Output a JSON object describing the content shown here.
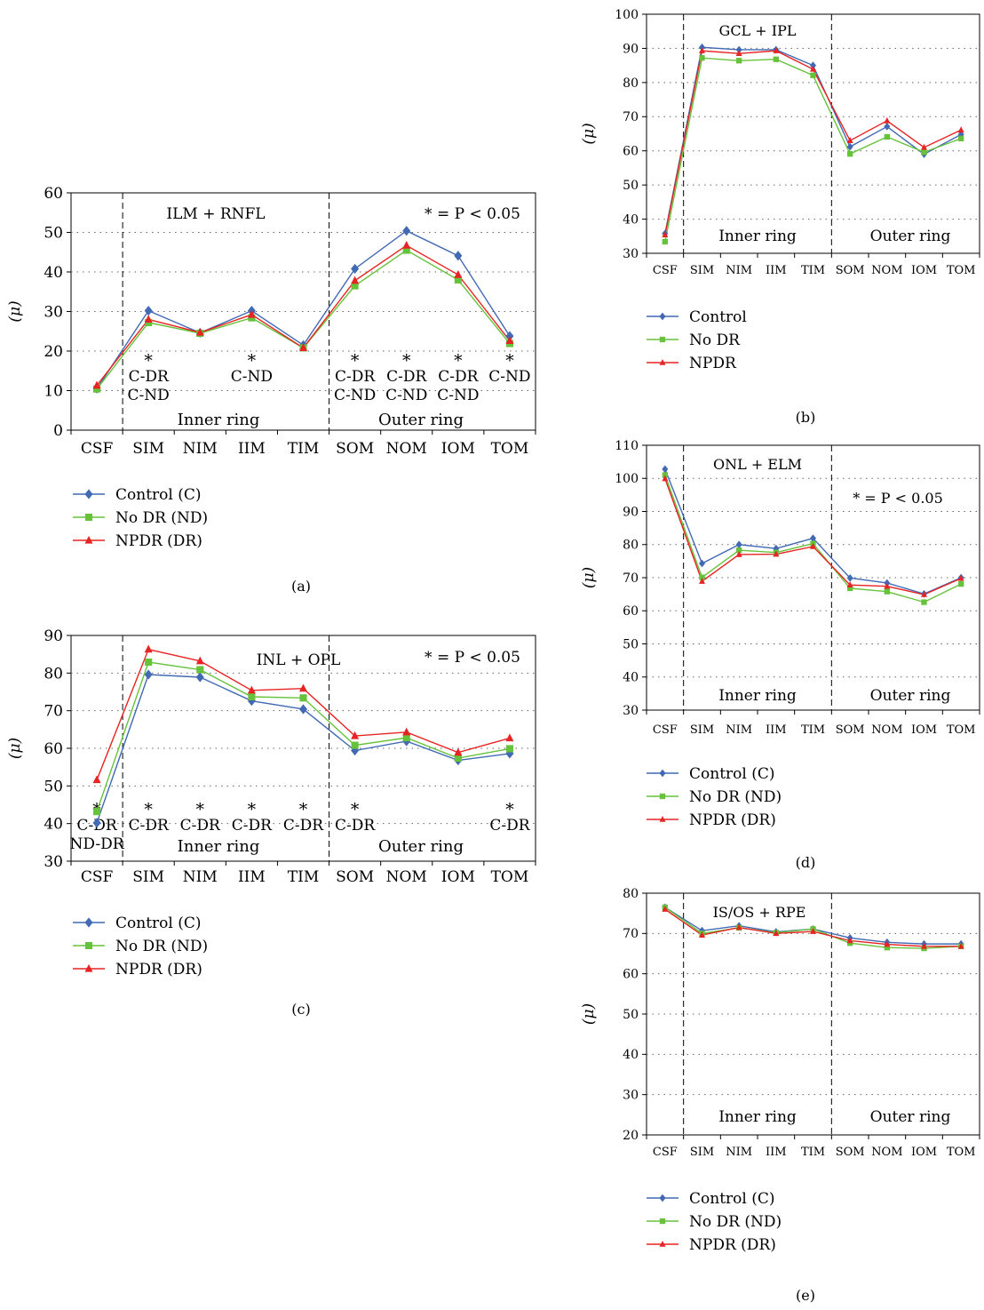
{
  "colors": {
    "Control": "#4169B4",
    "No DR": "#66C23B",
    "NPDR": "#E82323"
  },
  "chart_data": [
    {
      "id": "a",
      "type": "line",
      "caption": "(a)",
      "title": "ILM + RNFL",
      "ylabel": "(μ)",
      "ylim": [
        0,
        60
      ],
      "yticks": [
        "0",
        "10",
        "20",
        "30",
        "40",
        "50",
        "60"
      ],
      "categories": [
        "CSF",
        "SIM",
        "NIM",
        "IIM",
        "TIM",
        "SOM",
        "NOM",
        "IOM",
        "TOM"
      ],
      "significance_note": "* = P < 0.05",
      "region_labels": [
        "Inner ring",
        "Outer ring"
      ],
      "annotations": [
        {
          "category": "SIM",
          "lines": [
            "*",
            "C-DR",
            "C-ND"
          ]
        },
        {
          "category": "IIM",
          "lines": [
            "*",
            "C-ND"
          ]
        },
        {
          "category": "SOM",
          "lines": [
            "*",
            "C-DR",
            "C-ND"
          ]
        },
        {
          "category": "NOM",
          "lines": [
            "*",
            "C-DR",
            "C-ND"
          ]
        },
        {
          "category": "IOM",
          "lines": [
            "*",
            "C-DR",
            "C-ND"
          ]
        },
        {
          "category": "TOM",
          "lines": [
            "*",
            "C-ND"
          ]
        }
      ],
      "series": [
        {
          "name": "Control (C)",
          "key": "Control",
          "values": [
            10.5,
            30.2,
            24.6,
            30.2,
            21.5,
            40.8,
            50.4,
            44.1,
            23.8
          ]
        },
        {
          "name": "No DR (ND)",
          "key": "No DR",
          "values": [
            10.4,
            27.2,
            24.5,
            28.4,
            20.8,
            36.5,
            45.5,
            38.0,
            21.9
          ]
        },
        {
          "name": "NPDR (DR)",
          "key": "NPDR",
          "values": [
            11.3,
            28.0,
            24.7,
            29.2,
            20.8,
            37.8,
            46.7,
            39.3,
            22.6
          ]
        }
      ]
    },
    {
      "id": "b",
      "type": "line",
      "caption": "(b)",
      "title": "GCL + IPL",
      "ylabel": "(μ)",
      "ylim": [
        30,
        100
      ],
      "yticks": [
        "30",
        "40",
        "50",
        "60",
        "70",
        "80",
        "90",
        "100"
      ],
      "categories": [
        "CSF",
        "SIM",
        "NIM",
        "IIM",
        "TIM",
        "SOM",
        "NOM",
        "IOM",
        "TOM"
      ],
      "significance_note": "",
      "region_labels": [
        "Inner ring",
        "Outer ring"
      ],
      "annotations": [],
      "series": [
        {
          "name": "Control",
          "key": "Control",
          "values": [
            35.8,
            90.3,
            89.6,
            89.6,
            85.0,
            61.2,
            67.1,
            59.0,
            64.8
          ]
        },
        {
          "name": "No DR",
          "key": "No DR",
          "values": [
            33.4,
            87.2,
            86.4,
            86.8,
            82.1,
            59.1,
            64.1,
            59.6,
            63.6
          ]
        },
        {
          "name": "NPDR",
          "key": "NPDR",
          "values": [
            35.4,
            89.3,
            88.5,
            89.3,
            83.9,
            63.0,
            68.8,
            61.0,
            66.1
          ]
        }
      ]
    },
    {
      "id": "c",
      "type": "line",
      "caption": "(c)",
      "title": "INL + OPL",
      "ylabel": "(μ)",
      "ylim": [
        30,
        90
      ],
      "yticks": [
        "30",
        "40",
        "50",
        "60",
        "70",
        "80",
        "90"
      ],
      "categories": [
        "CSF",
        "SIM",
        "NIM",
        "IIM",
        "TIM",
        "SOM",
        "NOM",
        "IOM",
        "TOM"
      ],
      "significance_note": "* = P < 0.05",
      "region_labels": [
        "Inner ring",
        "Outer ring"
      ],
      "annotations": [
        {
          "category": "CSF",
          "lines": [
            "*",
            "C-DR",
            "ND-DR"
          ]
        },
        {
          "category": "SIM",
          "lines": [
            "*",
            "C-DR"
          ]
        },
        {
          "category": "NIM",
          "lines": [
            "*",
            "C-DR"
          ]
        },
        {
          "category": "IIM",
          "lines": [
            "*",
            "C-DR"
          ]
        },
        {
          "category": "TIM",
          "lines": [
            "*",
            "C-DR"
          ]
        },
        {
          "category": "SOM",
          "lines": [
            "*",
            "C-DR"
          ]
        },
        {
          "category": "TOM",
          "lines": [
            "*",
            "C-DR"
          ]
        }
      ],
      "series": [
        {
          "name": "Control (C)",
          "key": "Control",
          "values": [
            40.2,
            79.6,
            78.9,
            72.6,
            70.4,
            59.4,
            61.9,
            56.8,
            58.6
          ]
        },
        {
          "name": "No DR (ND)",
          "key": "No DR",
          "values": [
            43.2,
            82.9,
            80.9,
            73.7,
            73.4,
            60.8,
            62.8,
            57.4,
            59.9
          ]
        },
        {
          "name": "NPDR (DR)",
          "key": "NPDR",
          "values": [
            51.6,
            86.3,
            83.2,
            75.4,
            75.9,
            63.3,
            64.3,
            58.9,
            62.7
          ]
        }
      ]
    },
    {
      "id": "d",
      "type": "line",
      "caption": "(d)",
      "title": "ONL + ELM",
      "ylabel": "(μ)",
      "ylim": [
        30,
        110
      ],
      "yticks": [
        "30",
        "40",
        "50",
        "60",
        "70",
        "80",
        "90",
        "100",
        "110"
      ],
      "categories": [
        "CSF",
        "SIM",
        "NIM",
        "IIM",
        "TIM",
        "SOM",
        "NOM",
        "IOM",
        "TOM"
      ],
      "significance_note": "* = P < 0.05",
      "region_labels": [
        "Inner ring",
        "Outer ring"
      ],
      "annotations": [],
      "series": [
        {
          "name": "Control (C)",
          "key": "Control",
          "values": [
            102.8,
            74.3,
            80.0,
            78.8,
            81.9,
            69.9,
            68.4,
            65.1,
            70.0
          ]
        },
        {
          "name": "No DR (ND)",
          "key": "No DR",
          "values": [
            101.0,
            70.1,
            78.3,
            77.6,
            80.3,
            66.8,
            65.8,
            62.6,
            68.1
          ]
        },
        {
          "name": "NPDR (DR)",
          "key": "NPDR",
          "values": [
            99.9,
            68.9,
            77.0,
            77.1,
            79.4,
            67.8,
            67.4,
            64.9,
            69.8
          ]
        }
      ]
    },
    {
      "id": "e",
      "type": "line",
      "caption": "(e)",
      "title": "IS/OS + RPE",
      "ylabel": "(μ)",
      "ylim": [
        20,
        80
      ],
      "yticks": [
        "20",
        "30",
        "40",
        "50",
        "60",
        "70",
        "80"
      ],
      "categories": [
        "CSF",
        "SIM",
        "NIM",
        "IIM",
        "TIM",
        "SOM",
        "NOM",
        "IOM",
        "TOM"
      ],
      "significance_note": "",
      "region_labels": [
        "Inner ring",
        "Outer ring"
      ],
      "annotations": [],
      "series": [
        {
          "name": "Control (C)",
          "key": "Control",
          "values": [
            76.5,
            70.7,
            71.9,
            70.4,
            71.1,
            68.9,
            67.8,
            67.4,
            67.4
          ]
        },
        {
          "name": "No DR (ND)",
          "key": "No DR",
          "values": [
            76.5,
            70.0,
            71.4,
            70.2,
            71.1,
            67.6,
            66.5,
            66.3,
            66.8
          ]
        },
        {
          "name": "NPDR (DR)",
          "key": "NPDR",
          "values": [
            76.0,
            69.6,
            71.5,
            70.0,
            70.5,
            68.2,
            67.3,
            66.8,
            66.8
          ]
        }
      ]
    }
  ]
}
